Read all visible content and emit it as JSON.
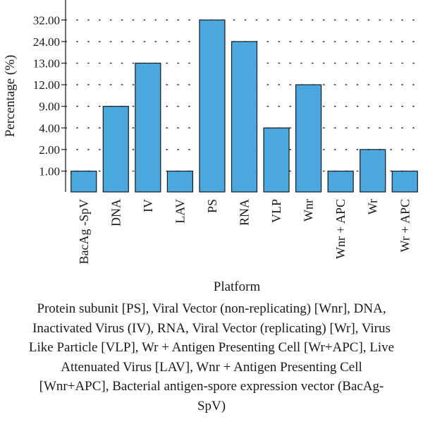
{
  "chart_data": {
    "type": "bar",
    "ylabel": "Percentage (%)",
    "xlabel": "Platform",
    "y_tick_labels": [
      "1.00",
      "2.00",
      "4.00",
      "9.00",
      "12.00",
      "13.00",
      "24.00",
      "32.00"
    ],
    "categories": [
      "BacAg -SpV",
      "DNA",
      "IV",
      "LAV",
      "PS",
      "RNA",
      "VLP",
      "Wnr",
      "Wnr + APC",
      "Wr",
      "Wr + APC"
    ],
    "values": [
      1,
      9,
      13,
      1,
      32,
      24,
      4,
      12,
      1,
      2,
      1
    ],
    "bar_color": "#4aa8df",
    "grid": "dotted horizontal"
  },
  "caption": "Protein subunit [PS], Viral Vector (non-replicating) [Wnr], DNA, Inactivated Virus (IV), RNA, Viral Vector (replicating) [Wr], Virus Like Particle [VLP], Wr + Antigen Presenting Cell [Wr+APC], Live Attenuated Virus [LAV], Wnr + Antigen Presenting Cell [Wnr+APC], Bacterial antigen-spore expression vector (BacAg-SpV)"
}
